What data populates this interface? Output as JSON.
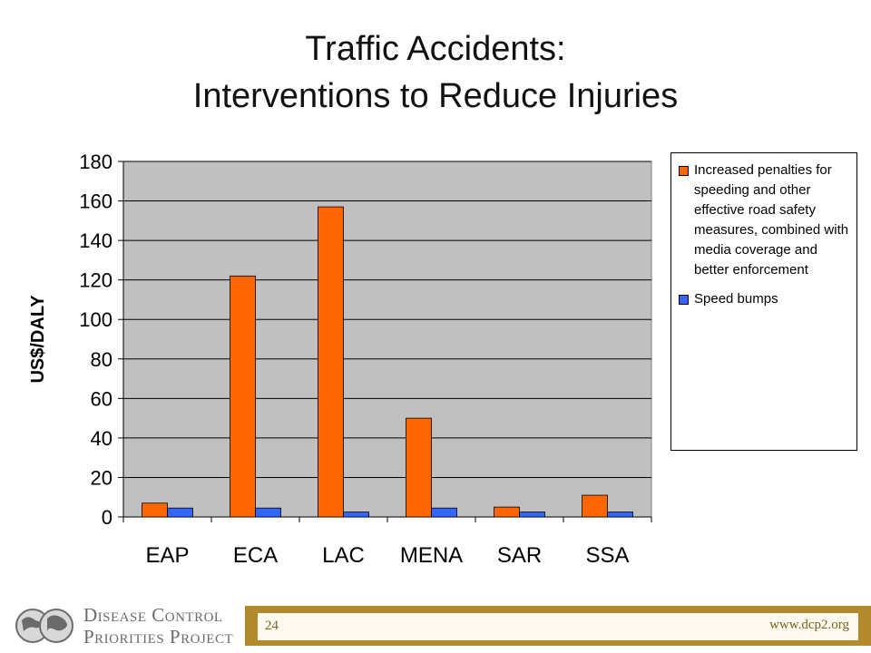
{
  "slide": {
    "title_line1": "Traffic Accidents:",
    "title_line2": "Interventions to Reduce Injuries"
  },
  "chart_data": {
    "type": "bar",
    "categories": [
      "EAP",
      "ECA",
      "LAC",
      "MENA",
      "SAR",
      "SSA"
    ],
    "series": [
      {
        "name": "Increased penalties for speeding and other effective road safety measures, combined with media coverage and better enforcement",
        "values": [
          7,
          122,
          157,
          50,
          5,
          11
        ],
        "color": "#ff6600"
      },
      {
        "name": "Speed bumps",
        "values": [
          4.5,
          4.5,
          2.5,
          4.5,
          2.5,
          2.5
        ],
        "color": "#3366ff"
      }
    ],
    "ylabel": "US$/DALY",
    "xlabel": "",
    "ylim": [
      0,
      180
    ],
    "yticks": [
      0,
      20,
      40,
      60,
      80,
      100,
      120,
      140,
      160,
      180
    ],
    "grid": true,
    "plot_background": "#c0c0c0",
    "legend_position": "right"
  },
  "footer": {
    "logo_line1": "Disease Control",
    "logo_line2": "Priorities Project",
    "page_number": "24",
    "website": "www.dcp2.org"
  }
}
